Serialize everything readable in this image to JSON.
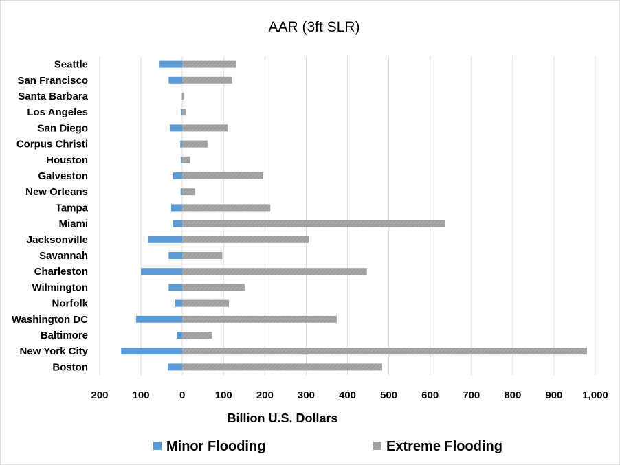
{
  "chart_data": {
    "type": "bar",
    "orientation": "horizontal",
    "title": "AAR (3ft SLR)",
    "xlabel": "Billion U.S. Dollars",
    "ylabel": "",
    "xlim": [
      -200,
      1000
    ],
    "x_ticks": [
      -200,
      -100,
      0,
      100,
      200,
      300,
      400,
      500,
      600,
      700,
      800,
      900,
      1000
    ],
    "x_tick_labels": [
      "200",
      "100",
      "0",
      "100",
      "200",
      "300",
      "400",
      "500",
      "600",
      "700",
      "800",
      "900",
      "1,000"
    ],
    "grid": true,
    "legend_position": "bottom",
    "categories": [
      "Seattle",
      "San Francisco",
      "Santa Barbara",
      "Los Angeles",
      "San Diego",
      "Corpus Christi",
      "Houston",
      "Galveston",
      "New Orleans",
      "Tampa",
      "Miami",
      "Jacksonville",
      "Savannah",
      "Charleston",
      "Wilmington",
      "Norfolk",
      "Washington DC",
      "Baltimore",
      "New York City",
      "Boston"
    ],
    "series": [
      {
        "name": "Minor Flooding",
        "color": "#5b9bd5",
        "direction": "negative",
        "values": [
          -55,
          -33,
          -1,
          -3,
          -30,
          -5,
          -3,
          -22,
          -4,
          -27,
          -22,
          -83,
          -33,
          -100,
          -33,
          -17,
          -112,
          -13,
          -148,
          -35
        ]
      },
      {
        "name": "Extreme Flooding",
        "color": "#a5a5a5",
        "direction": "positive",
        "values": [
          131,
          121,
          3,
          9,
          110,
          61,
          19,
          196,
          31,
          213,
          637,
          306,
          97,
          447,
          151,
          113,
          374,
          72,
          980,
          484
        ]
      }
    ]
  }
}
